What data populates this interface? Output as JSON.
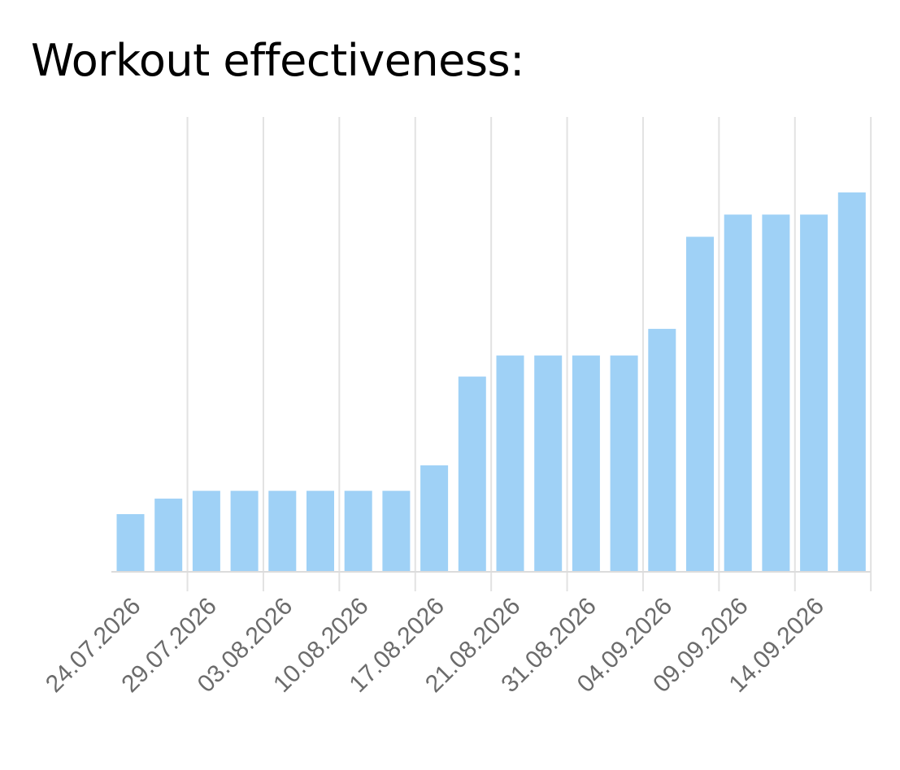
{
  "title": "Workout effectiveness:",
  "colors": {
    "bar": "#9acff5",
    "grid": "#e2e2e2",
    "axis": "#dcdcdc",
    "tick_label": "#6b6b6b"
  },
  "chart_data": {
    "type": "bar",
    "title": "Workout effectiveness:",
    "xlabel": "",
    "ylabel": "",
    "grid": "vertical",
    "legend": "none",
    "ylim": [
      0,
      205
    ],
    "categories": [
      "24.07.2026",
      "",
      "29.07.2026",
      "",
      "03.08.2026",
      "",
      "10.08.2026",
      "",
      "17.08.2026",
      "",
      "21.08.2026",
      "",
      "31.08.2026",
      "",
      "04.09.2026",
      "",
      "09.09.2026",
      "",
      "14.09.2026",
      ""
    ],
    "tick_labels": [
      "24.07.2026",
      "29.07.2026",
      "03.08.2026",
      "10.08.2026",
      "17.08.2026",
      "21.08.2026",
      "31.08.2026",
      "04.09.2026",
      "09.09.2026",
      "14.09.2026"
    ],
    "values": [
      26,
      33,
      36.5,
      36.5,
      36.5,
      36.5,
      36.5,
      36.5,
      48,
      88,
      97.5,
      97.5,
      97.5,
      97.5,
      109.5,
      151,
      161,
      161,
      161,
      171
    ]
  }
}
